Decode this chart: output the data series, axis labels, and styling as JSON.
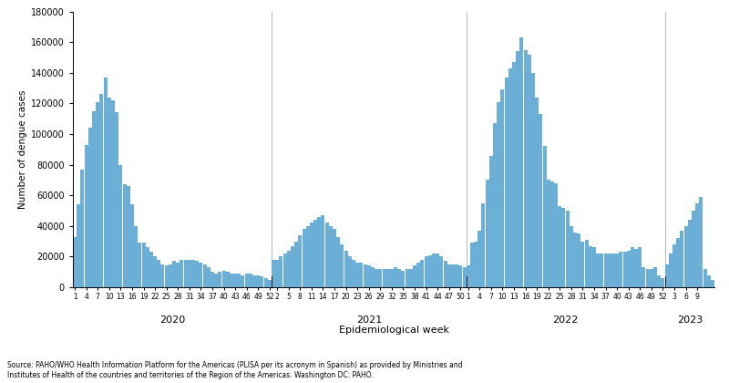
{
  "bar_color": "#6baed6",
  "background_color": "#ffffff",
  "ylabel": "Number of dengue cases",
  "xlabel": "Epidemiological week",
  "ylim": [
    0,
    180000
  ],
  "yticks": [
    0,
    20000,
    40000,
    60000,
    80000,
    100000,
    120000,
    140000,
    160000,
    180000
  ],
  "source_text": "Source: PAHO/WHO Health Information Platform for the Americas (PLISA per its acronym in Spanish) as provided by Ministries and\nInstitutes of Health of the countries and territories of the Region of the Americas. Washington DC: PAHO.",
  "year_labels": [
    "2020",
    "2021",
    "2022",
    "2023"
  ],
  "show_weeks_2020": [
    1,
    4,
    7,
    10,
    13,
    16,
    19,
    22,
    25,
    28,
    31,
    34,
    37,
    40,
    43,
    46,
    49,
    52
  ],
  "show_weeks_2021": [
    2,
    5,
    8,
    11,
    14,
    17,
    20,
    23,
    26,
    29,
    32,
    35,
    38,
    41,
    44,
    47,
    50
  ],
  "show_weeks_2022": [
    1,
    4,
    7,
    10,
    13,
    16,
    19,
    22,
    25,
    28,
    31,
    34,
    37,
    40,
    43,
    46,
    49,
    52
  ],
  "show_weeks_2023": [
    3,
    6,
    9
  ],
  "values_2020": [
    33000,
    54000,
    77000,
    93000,
    104000,
    115000,
    121000,
    126000,
    137000,
    124000,
    122000,
    114000,
    80000,
    67000,
    66000,
    54000,
    40000,
    29000,
    29000,
    26000,
    23000,
    20000,
    18000,
    15000,
    14000,
    15000,
    17000,
    16000,
    18000,
    18000,
    18000,
    18000,
    17000,
    16000,
    15000,
    13000,
    10000,
    9000,
    10000,
    11000,
    10000,
    9000,
    9000,
    9000,
    8000,
    9000,
    9000,
    8000,
    8000,
    7000,
    6000,
    5000
  ],
  "values_2021": [
    18000,
    18000,
    20000,
    22000,
    24000,
    27000,
    30000,
    34000,
    38000,
    40000,
    42000,
    44000,
    46000,
    47000,
    42000,
    40000,
    38000,
    33000,
    28000,
    24000,
    20000,
    18000,
    16000,
    16000,
    15000,
    14000,
    13000,
    12000,
    12000,
    12000,
    12000,
    12000,
    13000,
    12000,
    11000,
    12000,
    12000,
    14000,
    16000,
    18000,
    20000,
    21000,
    22000,
    22000,
    20000,
    17000,
    15000,
    15000,
    15000,
    14000,
    13000
  ],
  "values_2022": [
    14000,
    29000,
    30000,
    37000,
    55000,
    70000,
    86000,
    107000,
    121000,
    129000,
    137000,
    143000,
    147000,
    154000,
    163000,
    155000,
    152000,
    140000,
    124000,
    113000,
    92000,
    70000,
    69000,
    68000,
    53000,
    52000,
    50000,
    40000,
    36000,
    35000,
    30000,
    31000,
    27000,
    26000,
    22000,
    22000,
    22000,
    22000,
    22000,
    22000,
    23000,
    23000,
    24000,
    26000,
    25000,
    26000,
    13000,
    12000,
    12000,
    13000,
    8000,
    6000
  ],
  "values_2023": [
    15000,
    22000,
    28000,
    32000,
    37000,
    40000,
    44000,
    50000,
    55000,
    59000,
    12000,
    8000,
    5000
  ]
}
